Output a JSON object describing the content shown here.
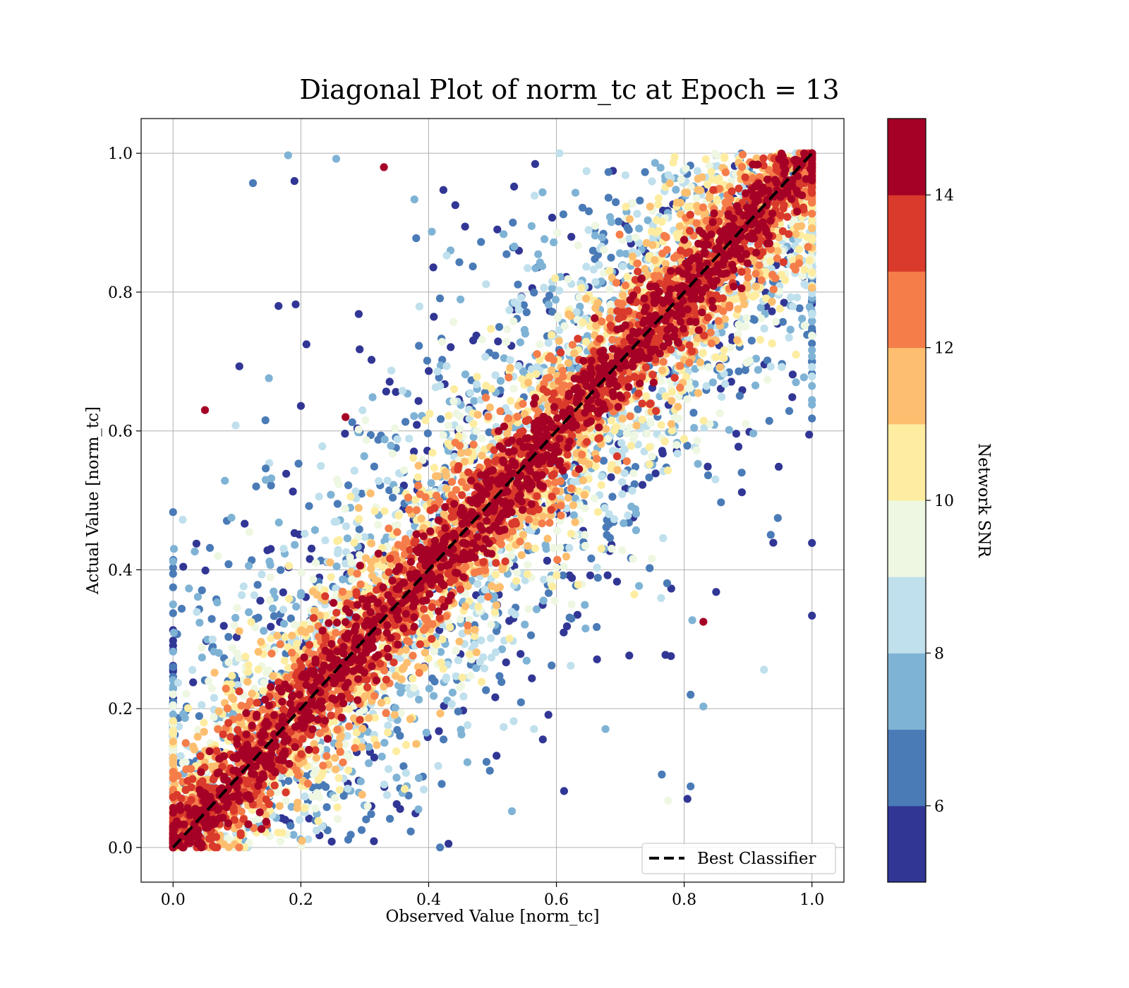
{
  "chart_data": {
    "type": "scatter",
    "title": "Diagonal Plot of norm_tc at Epoch = 13",
    "xlabel": "Observed Value [norm_tc]",
    "ylabel": "Actual Value [norm_tc]",
    "xlim": [
      -0.05,
      1.05
    ],
    "ylim": [
      -0.05,
      1.05
    ],
    "x_ticks": [
      "0.0",
      "0.2",
      "0.4",
      "0.6",
      "0.8",
      "1.0"
    ],
    "y_ticks": [
      "0.0",
      "0.2",
      "0.4",
      "0.6",
      "0.8",
      "1.0"
    ],
    "grid": true,
    "legend": {
      "placement": "lower-right",
      "entries": [
        {
          "label": "Best Classifier",
          "style": "dashed",
          "color": "#000000"
        }
      ]
    },
    "reference_line": {
      "label": "Best Classifier",
      "x": [
        0.0,
        1.0
      ],
      "y": [
        0.0,
        1.0
      ]
    },
    "colorbar": {
      "label": "Network SNR",
      "range": [
        5,
        15
      ],
      "ticks": [
        "6",
        "8",
        "10",
        "12",
        "14"
      ],
      "bins": [
        {
          "from": 5,
          "to": 6,
          "color": "#313695"
        },
        {
          "from": 6,
          "to": 7,
          "color": "#4a7bb7"
        },
        {
          "from": 7,
          "to": 8,
          "color": "#7fb3d5"
        },
        {
          "from": 8,
          "to": 9,
          "color": "#bfe0ec"
        },
        {
          "from": 9,
          "to": 10,
          "color": "#eef7e1"
        },
        {
          "from": 10,
          "to": 11,
          "color": "#feeda1"
        },
        {
          "from": 11,
          "to": 12,
          "color": "#fdbf6f"
        },
        {
          "from": 12,
          "to": 13,
          "color": "#f57d4a"
        },
        {
          "from": 13,
          "to": 14,
          "color": "#d93a2b"
        },
        {
          "from": 14,
          "to": 15,
          "color": "#a50026"
        }
      ]
    },
    "point_cloud": {
      "description_of_distribution": "dense high-SNR band along y = x; lower-SNR points spread further from diagonal",
      "count": 9000,
      "x_range": [
        0.0,
        1.0
      ],
      "y_range": [
        0.0,
        1.0
      ]
    },
    "outliers": [
      {
        "x": 0.18,
        "y": 0.997,
        "snr": 7
      },
      {
        "x": 0.125,
        "y": 0.957,
        "snr": 6
      },
      {
        "x": 0.19,
        "y": 0.96,
        "snr": 5
      },
      {
        "x": 0.165,
        "y": 0.78,
        "snr": 5
      },
      {
        "x": 0.05,
        "y": 0.63,
        "snr": 14.5
      },
      {
        "x": 0.015,
        "y": 0.472,
        "snr": 8.5
      },
      {
        "x": 0.0,
        "y": 0.412,
        "snr": 7
      },
      {
        "x": 0.0,
        "y": 0.35,
        "snr": 7
      },
      {
        "x": 0.07,
        "y": 0.42,
        "snr": 9.5
      },
      {
        "x": 0.045,
        "y": 0.288,
        "snr": 9.5
      },
      {
        "x": 0.13,
        "y": 0.52,
        "snr": 6
      },
      {
        "x": 0.145,
        "y": 0.546,
        "snr": 6
      },
      {
        "x": 0.15,
        "y": 0.676,
        "snr": 7
      },
      {
        "x": 0.2,
        "y": 0.636,
        "snr": 5
      },
      {
        "x": 0.925,
        "y": 0.256,
        "snr": 8.5
      },
      {
        "x": 0.89,
        "y": 0.54,
        "snr": 6
      },
      {
        "x": 0.83,
        "y": 0.325,
        "snr": 14.5
      },
      {
        "x": 0.85,
        "y": 0.368,
        "snr": 5
      },
      {
        "x": 0.845,
        "y": 0.67,
        "snr": 7
      },
      {
        "x": 0.91,
        "y": 0.76,
        "snr": 6
      },
      {
        "x": 0.805,
        "y": 0.07,
        "snr": 5
      },
      {
        "x": 0.81,
        "y": 0.088,
        "snr": 6
      },
      {
        "x": 0.81,
        "y": 0.22,
        "snr": 6
      },
      {
        "x": 0.83,
        "y": 0.203,
        "snr": 7
      },
      {
        "x": 0.765,
        "y": 0.105,
        "snr": 6
      },
      {
        "x": 0.775,
        "y": 0.067,
        "snr": 9.5
      },
      {
        "x": 0.33,
        "y": 0.98,
        "snr": 14.5
      },
      {
        "x": 0.27,
        "y": 0.62,
        "snr": 14.5
      }
    ]
  }
}
